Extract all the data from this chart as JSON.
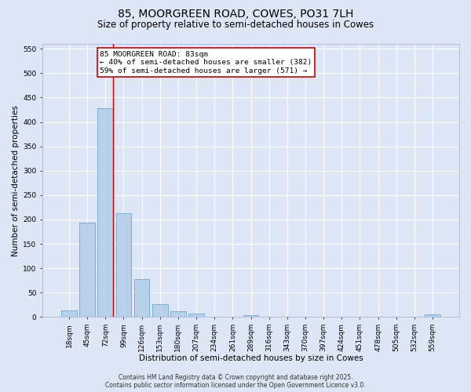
{
  "title_line1": "85, MOORGREEN ROAD, COWES, PO31 7LH",
  "title_line2": "Size of property relative to semi-detached houses in Cowes",
  "xlabel": "Distribution of semi-detached houses by size in Cowes",
  "ylabel": "Number of semi-detached properties",
  "categories": [
    "18sqm",
    "45sqm",
    "72sqm",
    "99sqm",
    "126sqm",
    "153sqm",
    "180sqm",
    "207sqm",
    "234sqm",
    "261sqm",
    "289sqm",
    "316sqm",
    "343sqm",
    "370sqm",
    "397sqm",
    "424sqm",
    "451sqm",
    "478sqm",
    "505sqm",
    "532sqm",
    "559sqm"
  ],
  "values": [
    13,
    194,
    428,
    212,
    78,
    27,
    11,
    7,
    0,
    0,
    4,
    0,
    0,
    0,
    0,
    0,
    0,
    0,
    0,
    0,
    5
  ],
  "bar_color": "#b8d0ea",
  "bar_edge_color": "#6aaad4",
  "background_color": "#dce6f5",
  "grid_color": "#ffffff",
  "vline_color": "#cc0000",
  "vline_index": 2.42,
  "annotation_text_line1": "85 MOORGREEN ROAD: 83sqm",
  "annotation_text_line2": "← 40% of semi-detached houses are smaller (382)",
  "annotation_text_line3": "59% of semi-detached houses are larger (571) →",
  "annotation_box_color": "#cc0000",
  "ylim_max": 560,
  "yticks": [
    0,
    50,
    100,
    150,
    200,
    250,
    300,
    350,
    400,
    450,
    500,
    550
  ],
  "footer_line1": "Contains HM Land Registry data © Crown copyright and database right 2025.",
  "footer_line2": "Contains public sector information licensed under the Open Government Licence v3.0.",
  "title_fontsize": 10,
  "subtitle_fontsize": 8.5,
  "axis_label_fontsize": 7.5,
  "tick_fontsize": 6.5,
  "annotation_fontsize": 6.8,
  "footer_fontsize": 5.5
}
